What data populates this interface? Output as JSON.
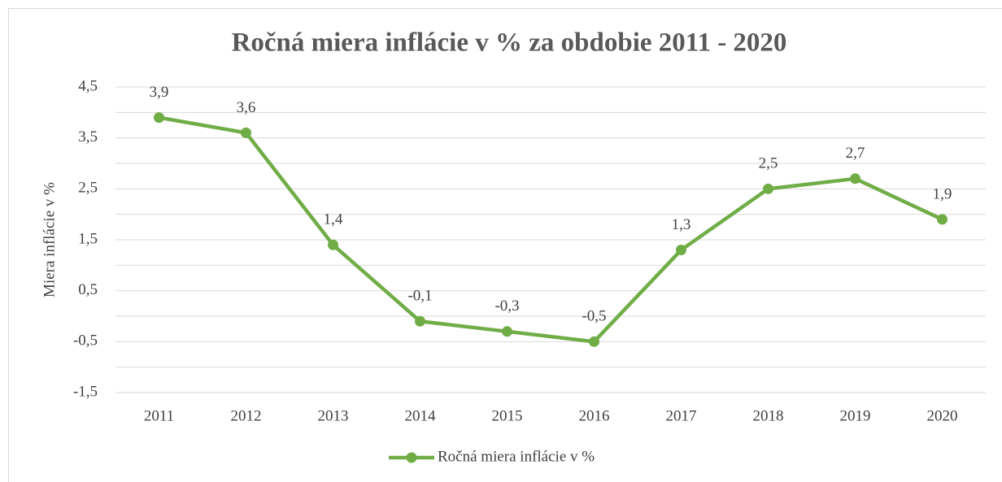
{
  "chart_data": {
    "type": "line",
    "title": "Ročná miera inflácie v % za obdobie 2011 - 2020",
    "ylabel": "Miera inflácie v %",
    "categories": [
      "2011",
      "2012",
      "2013",
      "2014",
      "2015",
      "2016",
      "2017",
      "2018",
      "2019",
      "2020"
    ],
    "series": [
      {
        "name": "Ročná miera inflácie v %",
        "color": "#70ad47",
        "values": [
          3.9,
          3.6,
          1.4,
          -0.1,
          -0.3,
          -0.5,
          1.3,
          2.5,
          2.7,
          1.9
        ],
        "value_labels": [
          "3,9",
          "3,6",
          "1,4",
          "-0,1",
          "-0,3",
          "-0,5",
          "1,3",
          "2,5",
          "2,7",
          "1,9"
        ]
      }
    ],
    "ylim": [
      -1.5,
      4.5
    ],
    "yticks": [
      {
        "value": 4.5,
        "label": "4,5"
      },
      {
        "value": 3.5,
        "label": "3,5"
      },
      {
        "value": 2.5,
        "label": "2,5"
      },
      {
        "value": 1.5,
        "label": "1,5"
      },
      {
        "value": 0.5,
        "label": "0,5"
      },
      {
        "value": -0.5,
        "label": "-0,5"
      },
      {
        "value": -1.5,
        "label": "-1,5"
      }
    ],
    "minor_grid": [
      4,
      3,
      2,
      1,
      0,
      -1
    ],
    "grid": true,
    "legend": "bottom"
  }
}
